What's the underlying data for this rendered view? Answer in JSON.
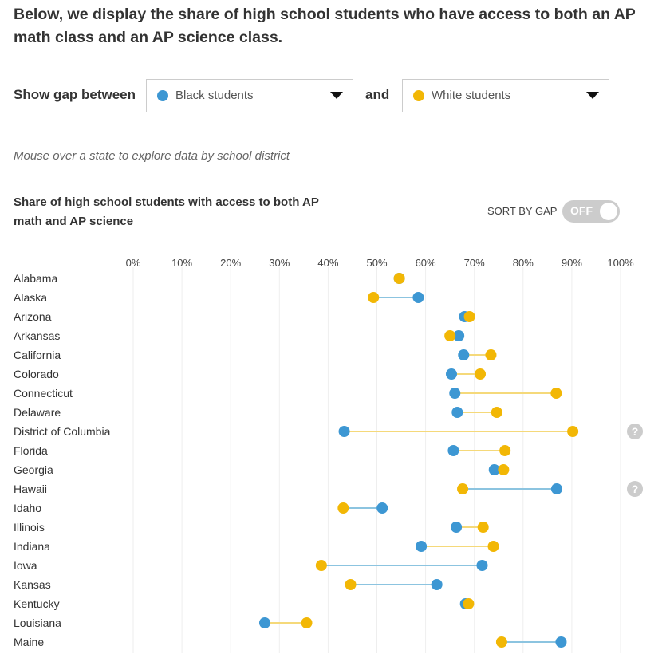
{
  "intro": "Below, we display the share of high school students who have access to both an AP math class and an AP science class.",
  "controls": {
    "show_gap_label": "Show gap between",
    "and_label": "and",
    "group1": {
      "label": "Black students",
      "color": "#3d97d3"
    },
    "group2": {
      "label": "White students",
      "color": "#f2b705"
    }
  },
  "hint": "Mouse over a state to explore data by school district",
  "chart_title": "Share of high school students with access to both AP math and AP science",
  "sort": {
    "label": "SORT BY GAP",
    "state": "OFF"
  },
  "colors": {
    "black": "#3d97d3",
    "white": "#f2b705",
    "line_blue": "#8cc4e0",
    "line_yellow": "#f5d97a",
    "grid": "#eeeeee",
    "help": "#cccccc"
  },
  "icons": {
    "help": "question-circle-icon"
  },
  "chart_data": {
    "type": "dumbbell",
    "title": "Share of high school students with access to both AP math and AP science",
    "x_ticks": [
      "0%",
      "10%",
      "20%",
      "30%",
      "40%",
      "50%",
      "60%",
      "70%",
      "80%",
      "90%",
      "100%"
    ],
    "xlim": [
      0,
      100
    ],
    "grid": true,
    "series": [
      {
        "name": "Black students",
        "key": "black"
      },
      {
        "name": "White students",
        "key": "white"
      }
    ],
    "rows": [
      {
        "state": "Alabama",
        "black": 54.6,
        "white": 54.6
      },
      {
        "state": "Alaska",
        "black": 58.5,
        "white": 49.3
      },
      {
        "state": "Arizona",
        "black": 68.0,
        "white": 69.0
      },
      {
        "state": "Arkansas",
        "black": 66.8,
        "white": 65.0
      },
      {
        "state": "California",
        "black": 67.8,
        "white": 73.4
      },
      {
        "state": "Colorado",
        "black": 65.3,
        "white": 71.2
      },
      {
        "state": "Connecticut",
        "black": 66.0,
        "white": 86.8
      },
      {
        "state": "Delaware",
        "black": 66.5,
        "white": 74.6
      },
      {
        "state": "District of Columbia",
        "black": 43.3,
        "white": 90.2,
        "help": true
      },
      {
        "state": "Florida",
        "black": 65.7,
        "white": 76.3
      },
      {
        "state": "Georgia",
        "black": 74.1,
        "white": 76.0
      },
      {
        "state": "Hawaii",
        "black": 86.9,
        "white": 67.6,
        "help": true
      },
      {
        "state": "Idaho",
        "black": 51.1,
        "white": 43.1
      },
      {
        "state": "Illinois",
        "black": 66.3,
        "white": 71.8
      },
      {
        "state": "Indiana",
        "black": 59.1,
        "white": 73.9
      },
      {
        "state": "Iowa",
        "black": 71.6,
        "white": 38.6
      },
      {
        "state": "Kansas",
        "black": 62.3,
        "white": 44.6
      },
      {
        "state": "Kentucky",
        "black": 68.2,
        "white": 68.8
      },
      {
        "state": "Louisiana",
        "black": 27.0,
        "white": 35.6
      },
      {
        "state": "Maine",
        "black": 87.8,
        "white": 75.6
      }
    ]
  }
}
